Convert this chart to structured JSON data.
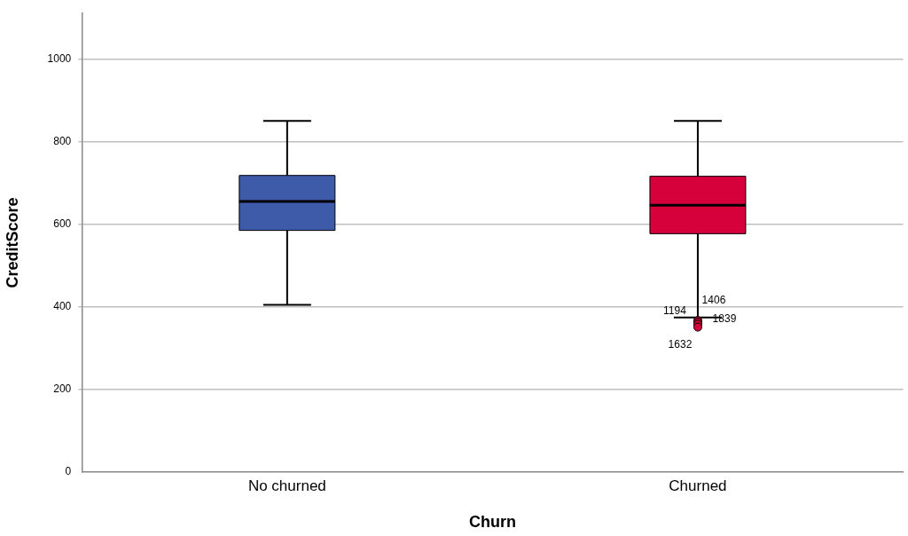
{
  "chart_data": {
    "type": "box",
    "xlabel": "Churn",
    "ylabel": "CreditScore",
    "categories": [
      "No churned",
      "Churned"
    ],
    "colors": [
      "#3e5ba9",
      "#d6003b"
    ],
    "boxes": [
      {
        "low": 405,
        "q1": 585,
        "median": 655,
        "q3": 718,
        "high": 850
      },
      {
        "low": 374,
        "q1": 577,
        "median": 646,
        "q3": 716,
        "high": 850,
        "outliers": [
          367,
          363,
          358,
          351
        ]
      }
    ],
    "ylim": [
      0,
      1110
    ],
    "yticks": [
      0,
      200,
      400,
      600,
      800,
      1000
    ],
    "grid": "y",
    "legend": false,
    "annotations": [
      "1406",
      "1194",
      "1839",
      "1632"
    ]
  }
}
